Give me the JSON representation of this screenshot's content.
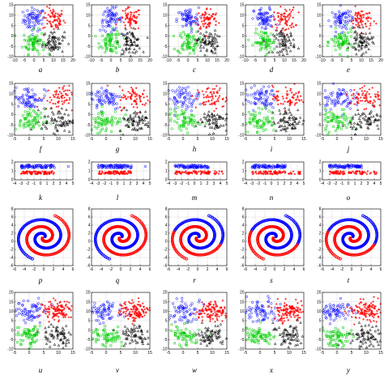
{
  "figure": {
    "rows": [
      {
        "type": "gauss4",
        "labels": [
          "a",
          "b",
          "c",
          "d",
          "e"
        ],
        "xticks": [
          -10,
          -5,
          0,
          5,
          10,
          15,
          20
        ],
        "yticks": [
          -10,
          -5,
          0,
          5,
          10,
          15
        ],
        "xlim": [
          -10,
          20
        ],
        "ylim": [
          -10,
          15
        ]
      },
      {
        "type": "gauss4",
        "labels": [
          "f",
          "g",
          "h",
          "i",
          "j"
        ],
        "xticks": [
          -5,
          0,
          5,
          10,
          15
        ],
        "yticks": [
          -10,
          -5,
          0,
          5,
          10,
          15
        ],
        "xlim": [
          -5,
          15
        ],
        "ylim": [
          -10,
          15
        ]
      },
      {
        "type": "strip2",
        "labels": [
          "k",
          "l",
          "m",
          "n",
          "o"
        ],
        "xticks": [
          -4,
          -3,
          -2,
          -1,
          0,
          1,
          2,
          3,
          4,
          5
        ],
        "yticks": [
          0,
          1,
          2
        ],
        "xlim": [
          -4,
          5
        ],
        "ylim": [
          0,
          2
        ]
      },
      {
        "type": "spiral2",
        "labels": [
          "p",
          "q",
          "r",
          "s",
          "t"
        ],
        "xticks": [
          -6,
          -4,
          -2,
          0,
          2,
          4,
          6
        ],
        "yticks": [
          -6,
          -4,
          -2,
          0,
          2,
          4,
          6,
          8
        ],
        "xlim": [
          -6,
          6
        ],
        "ylim": [
          -6,
          8
        ]
      },
      {
        "type": "gauss4b",
        "labels": [
          "u",
          "v",
          "w",
          "x",
          "y"
        ],
        "xticks": [
          -5,
          0,
          5,
          10,
          15
        ],
        "yticks": [
          -10,
          -5,
          0,
          5,
          10,
          15,
          20
        ],
        "xlim": [
          -5,
          15
        ],
        "ylim": [
          -10,
          20
        ]
      }
    ]
  },
  "chart_data": [
    {
      "type": "scatter",
      "panels": [
        "a",
        "b",
        "c",
        "d",
        "e",
        "f",
        "g",
        "h",
        "i",
        "j"
      ],
      "series": [
        {
          "marker": "circle",
          "color": "#0000ff",
          "center": [
            0,
            8
          ]
        },
        {
          "marker": "star",
          "color": "#ff0000",
          "center": [
            10,
            8
          ]
        },
        {
          "marker": "square",
          "color": "#00cc00",
          "center": [
            0,
            -3
          ]
        },
        {
          "marker": "triangle",
          "color": "#000000",
          "center": [
            10,
            -3
          ]
        }
      ]
    },
    {
      "type": "scatter",
      "panels": [
        "k",
        "l",
        "m",
        "n",
        "o"
      ],
      "series": [
        {
          "marker": "circle",
          "color": "#0000ff",
          "y": 1.5
        },
        {
          "marker": "star",
          "color": "#ff0000",
          "y": 0.8
        }
      ]
    },
    {
      "type": "scatter",
      "panels": [
        "p",
        "q",
        "r",
        "s",
        "t"
      ],
      "series": [
        {
          "marker": "circle",
          "color": "#0000ff",
          "shape": "spiral"
        },
        {
          "marker": "circle",
          "color": "#ff0000",
          "shape": "spiral"
        }
      ]
    },
    {
      "type": "scatter",
      "panels": [
        "u",
        "v",
        "w",
        "x",
        "y"
      ],
      "series": [
        {
          "marker": "circle",
          "color": "#0000ff",
          "center": [
            0,
            10
          ]
        },
        {
          "marker": "star",
          "color": "#ff0000",
          "center": [
            10,
            10
          ]
        },
        {
          "marker": "square",
          "color": "#00cc00",
          "center": [
            0,
            -3
          ]
        },
        {
          "marker": "triangle",
          "color": "#000000",
          "center": [
            10,
            -3
          ]
        }
      ]
    }
  ]
}
